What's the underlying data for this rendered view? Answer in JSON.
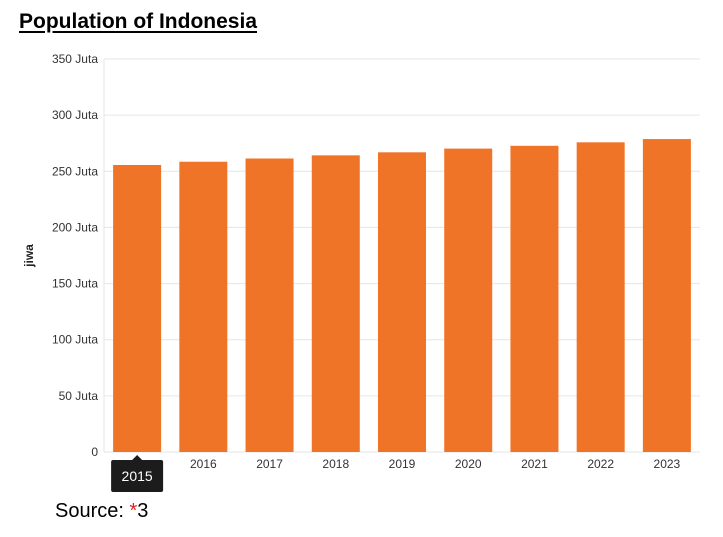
{
  "title": "Population of Indonesia",
  "source": {
    "prefix": "Source: ",
    "star": "*",
    "ref": "3"
  },
  "tooltip": {
    "label": "2015"
  },
  "colors": {
    "bar": "#f07427",
    "grid": "#e6e6e6",
    "tooltip_bg": "#1c1c1c"
  },
  "chart_data": {
    "type": "bar",
    "categories": [
      "2015",
      "2016",
      "2017",
      "2018",
      "2019",
      "2020",
      "2021",
      "2022",
      "2023"
    ],
    "values": [
      255.6,
      258.5,
      261.4,
      264.2,
      266.9,
      270.2,
      272.7,
      275.8,
      278.7
    ],
    "ylabel": "jiwa",
    "ylim": [
      0,
      350
    ],
    "yticks": [
      0,
      50,
      100,
      150,
      200,
      250,
      300,
      350
    ],
    "ytick_labels": [
      "0",
      "50 Juta",
      "100 Juta",
      "150 Juta",
      "200 Juta",
      "250 Juta",
      "300 Juta",
      "350 Juta"
    ],
    "grid": true,
    "highlighted_category": "2015"
  }
}
